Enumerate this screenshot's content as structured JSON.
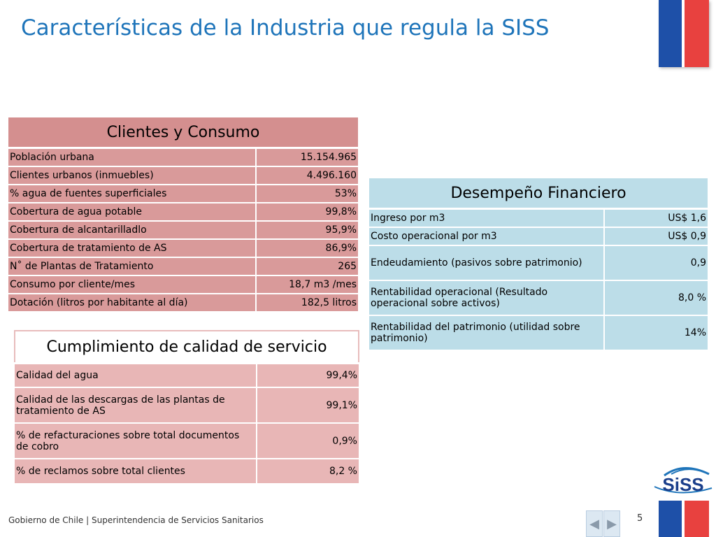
{
  "title": "Características de la Industria que regula la SISS",
  "clientes": {
    "header": "Clientes y Consumo",
    "rows": [
      {
        "label": "Población urbana",
        "value": "15.154.965"
      },
      {
        "label": "Clientes urbanos (inmuebles)",
        "value": "4.496.160"
      },
      {
        "label": "% agua de fuentes superficiales",
        "value": "53%"
      },
      {
        "label": "Cobertura de agua potable",
        "value": "99,8%"
      },
      {
        "label": "Cobertura de alcantarilladlo",
        "value": "95,9%"
      },
      {
        "label": "Cobertura de tratamiento de AS",
        "value": "86,9%"
      },
      {
        "label": "N˚  de Plantas de Tratamiento",
        "value": "265"
      },
      {
        "label": "Consumo por cliente/mes",
        "value": "18,7 m3 /mes"
      },
      {
        "label": "Dotación  (litros por habitante al día)",
        "value": "182,5 litros"
      }
    ]
  },
  "cumplimiento": {
    "header": "Cumplimiento de calidad de servicio",
    "rows": [
      {
        "label": "Calidad del agua",
        "value": "99,4%"
      },
      {
        "label": "Calidad  de las descargas de las plantas de tratamiento de AS",
        "value": "99,1%"
      },
      {
        "label": "% de refacturaciones sobre total documentos de cobro",
        "value": "0,9%"
      },
      {
        "label": "% de reclamos sobre total clientes",
        "value": "8,2 %"
      }
    ]
  },
  "desempeno": {
    "header": "Desempeño Financiero",
    "rows": [
      {
        "label": "Ingreso por m3",
        "value": "US$ 1,6"
      },
      {
        "label": "Costo operacional por m3",
        "value": "US$ 0,9"
      },
      {
        "label": "Endeudamiento (pasivos sobre patrimonio)",
        "value": "0,9"
      },
      {
        "label": "Rentabilidad operacional (Resultado operacional sobre activos)",
        "value": "8,0 %"
      },
      {
        "label": "Rentabilidad del patrimonio (utilidad sobre patrimonio)",
        "value": "14%"
      }
    ]
  },
  "footer": {
    "text": "Gobierno de Chile | Superintendencia de Servicios Sanitarios",
    "page_number": "5"
  },
  "logo": {
    "text": "SiSS"
  },
  "colors": {
    "title": "#1f75ba",
    "clientes_bg": "#d99a9a",
    "cumplimiento_bg": "#e8b6b6",
    "desempeno_bg": "#bcdde8",
    "flag_blue": "#1e50a8",
    "flag_red": "#e8413f"
  },
  "icons": {
    "prev": "triangle-left-icon",
    "next": "triangle-right-icon"
  }
}
